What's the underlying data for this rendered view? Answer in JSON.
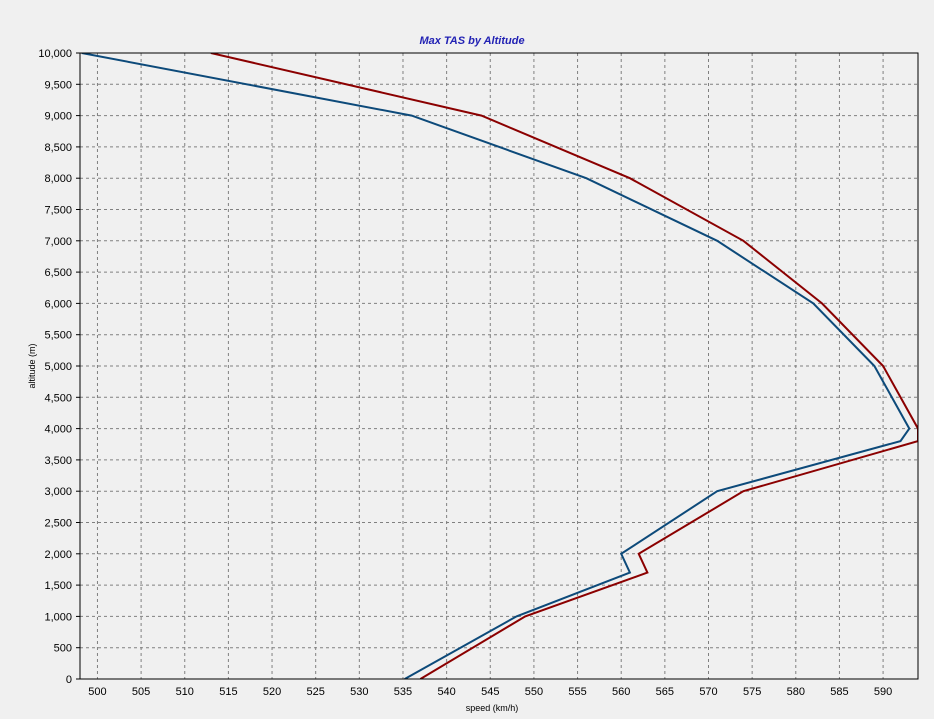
{
  "chart_data": {
    "type": "line",
    "title": "Max TAS by Altitude",
    "xlabel": "speed (km/h)",
    "ylabel": "altitude (m)",
    "xlim": [
      498,
      594
    ],
    "ylim": [
      0,
      10000
    ],
    "x_ticks": [
      500,
      505,
      510,
      515,
      520,
      525,
      530,
      535,
      540,
      545,
      550,
      555,
      560,
      565,
      570,
      575,
      580,
      585,
      590
    ],
    "y_ticks": [
      0,
      500,
      1000,
      1500,
      2000,
      2500,
      3000,
      3500,
      4000,
      4500,
      5000,
      5500,
      6000,
      6500,
      7000,
      7500,
      8000,
      8500,
      9000,
      9500,
      10000
    ],
    "x_tick_labels": [
      "500",
      "505",
      "510",
      "515",
      "520",
      "525",
      "530",
      "535",
      "540",
      "545",
      "550",
      "555",
      "560",
      "565",
      "570",
      "575",
      "580",
      "585",
      "590"
    ],
    "y_tick_labels": [
      "0",
      "500",
      "1,000",
      "1,500",
      "2,000",
      "2,500",
      "3,000",
      "3,500",
      "4,000",
      "4,500",
      "5,000",
      "5,500",
      "6,000",
      "6,500",
      "7,000",
      "7,500",
      "8,000",
      "8,500",
      "9,000",
      "9,500",
      "10,000"
    ],
    "grid": true,
    "legend": false,
    "series": [
      {
        "color": "#8b0000",
        "points": [
          {
            "x": 537,
            "y": 0
          },
          {
            "x": 549,
            "y": 1000
          },
          {
            "x": 563,
            "y": 1700
          },
          {
            "x": 562,
            "y": 2000
          },
          {
            "x": 574,
            "y": 3000
          },
          {
            "x": 594,
            "y": 3800
          },
          {
            "x": 594,
            "y": 4000
          },
          {
            "x": 590,
            "y": 5000
          },
          {
            "x": 583,
            "y": 6000
          },
          {
            "x": 574,
            "y": 7000
          },
          {
            "x": 561,
            "y": 8000
          },
          {
            "x": 544,
            "y": 9000
          },
          {
            "x": 513,
            "y": 10000
          }
        ]
      },
      {
        "color": "#0d4a7a",
        "points": [
          {
            "x": 535.2,
            "y": 0
          },
          {
            "x": 548,
            "y": 1000
          },
          {
            "x": 561,
            "y": 1700
          },
          {
            "x": 560,
            "y": 2000
          },
          {
            "x": 571,
            "y": 3000
          },
          {
            "x": 592,
            "y": 3800
          },
          {
            "x": 593,
            "y": 4000
          },
          {
            "x": 589,
            "y": 5000
          },
          {
            "x": 582,
            "y": 6000
          },
          {
            "x": 571,
            "y": 7000
          },
          {
            "x": 556,
            "y": 8000
          },
          {
            "x": 536,
            "y": 9000
          },
          {
            "x": 498.2,
            "y": 10000
          }
        ]
      }
    ]
  },
  "colors": {
    "background": "#f0f0f0",
    "plot_background": "#f0f0f0",
    "grid": "#808080",
    "title": "#2222b4"
  }
}
